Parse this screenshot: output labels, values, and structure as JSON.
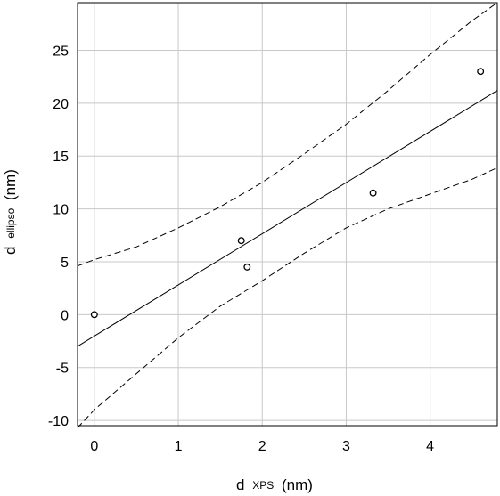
{
  "chart_data": {
    "type": "scatter",
    "xlabel": {
      "main": "d",
      "sub": "XPS",
      "unit": "(nm)"
    },
    "ylabel": {
      "main": "d",
      "sub": "ellipso",
      "unit": "(nm)"
    },
    "xlim": [
      -0.2,
      4.8
    ],
    "ylim": [
      -10.5,
      29.5
    ],
    "x_ticks": [
      0,
      1,
      2,
      3,
      4
    ],
    "y_ticks": [
      -10,
      -5,
      0,
      5,
      10,
      15,
      20,
      25
    ],
    "grid": true,
    "points": [
      {
        "x": 0.0,
        "y": 0.0
      },
      {
        "x": 1.75,
        "y": 7.0
      },
      {
        "x": 1.82,
        "y": 4.5
      },
      {
        "x": 3.32,
        "y": 11.5
      },
      {
        "x": 4.6,
        "y": 23.0
      }
    ],
    "fit_line": {
      "style": "solid",
      "x": [
        -0.2,
        4.8
      ],
      "y": [
        -3.0,
        21.2
      ]
    },
    "confidence_upper": {
      "style": "dashed",
      "x": [
        -0.2,
        0.0,
        0.5,
        1.0,
        1.5,
        2.0,
        2.5,
        3.0,
        3.5,
        4.0,
        4.5,
        4.8
      ],
      "y": [
        4.6,
        5.2,
        6.4,
        8.2,
        10.2,
        12.5,
        15.2,
        18.0,
        21.2,
        24.6,
        27.8,
        29.5
      ]
    },
    "confidence_lower": {
      "style": "dashed",
      "x": [
        -0.2,
        0.0,
        0.5,
        1.0,
        1.5,
        2.0,
        2.5,
        3.0,
        3.5,
        4.0,
        4.5,
        4.8
      ],
      "y": [
        -10.7,
        -9.0,
        -5.6,
        -2.2,
        0.8,
        3.2,
        5.8,
        8.2,
        10.0,
        11.4,
        12.8,
        13.9
      ]
    }
  }
}
